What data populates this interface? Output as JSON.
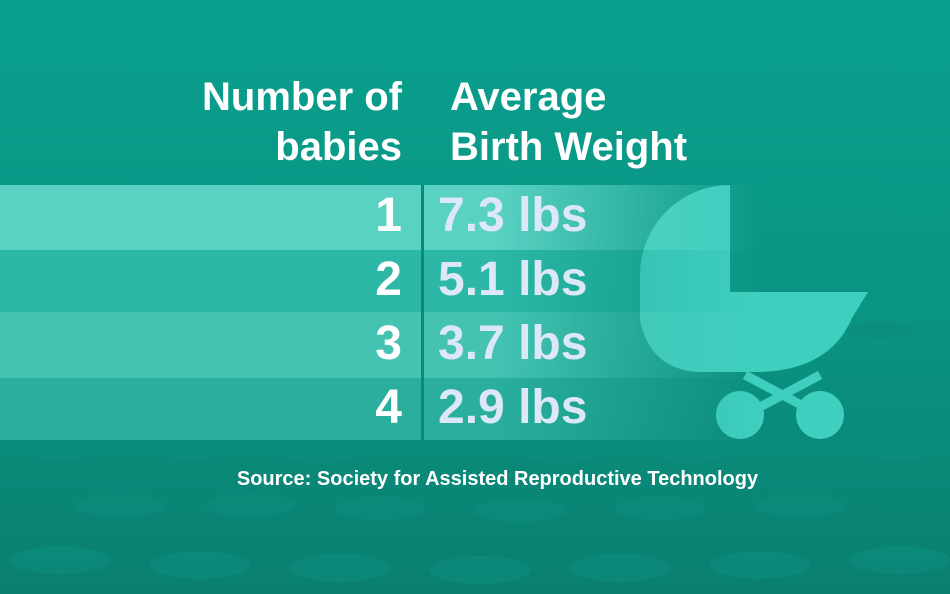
{
  "table": {
    "headers": [
      "Number of babies",
      "Average Birth Weight"
    ],
    "rows": [
      [
        "1",
        "7.3 lbs"
      ],
      [
        "2",
        "5.1 lbs"
      ],
      [
        "3",
        "3.7 lbs"
      ],
      [
        "4",
        "2.9 lbs"
      ]
    ]
  },
  "source": "Source: Society for Assisted Reproductive Technology"
}
